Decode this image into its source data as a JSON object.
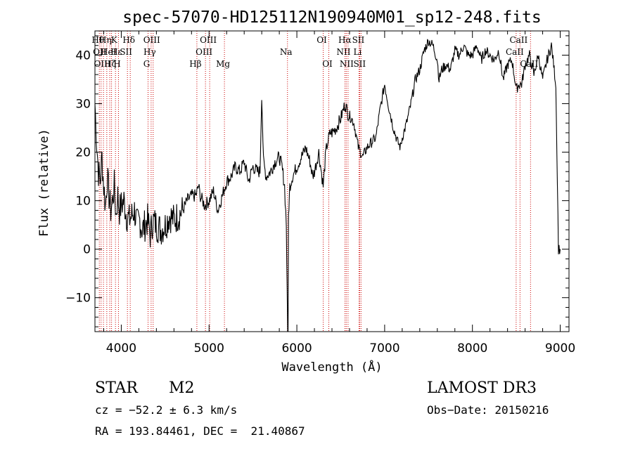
{
  "chart_data": {
    "type": "line",
    "title": "spec-57070-HD125112N190940M01_sp12-248.fits",
    "xlabel": "Wavelength (Å)",
    "ylabel": "Flux (relative)",
    "xlim": [
      3700,
      9100
    ],
    "ylim": [
      -17,
      45
    ],
    "xticks": [
      4000,
      5000,
      6000,
      7000,
      8000,
      9000
    ],
    "yticks": [
      -10,
      0,
      10,
      20,
      30,
      40
    ],
    "grid": false,
    "series": [
      {
        "x": [
          3700,
          3720,
          3740,
          3760,
          3780,
          3800,
          3820,
          3840,
          3860,
          3880,
          3900,
          3920,
          3940,
          3960,
          3980,
          4000,
          4030,
          4060,
          4090,
          4120,
          4150,
          4180,
          4210,
          4240,
          4270,
          4300,
          4330,
          4360,
          4400,
          4450,
          4500,
          4550,
          4600,
          4650,
          4700,
          4750,
          4800,
          4850,
          4880,
          4900,
          4950,
          5000,
          5050,
          5100,
          5150,
          5200,
          5250,
          5300,
          5350,
          5400,
          5450,
          5500,
          5550,
          5580,
          5600,
          5620,
          5650,
          5700,
          5750,
          5800,
          5830,
          5860,
          5880,
          5895,
          5900,
          5905,
          5920,
          5950,
          6000,
          6050,
          6080,
          6100,
          6150,
          6180,
          6200,
          6250,
          6300,
          6330,
          6350,
          6380,
          6400,
          6450,
          6500,
          6550,
          6580,
          6620,
          6650,
          6700,
          6750,
          6800,
          6850,
          6900,
          6950,
          7000,
          7050,
          7100,
          7150,
          7180,
          7200,
          7250,
          7300,
          7350,
          7400,
          7450,
          7500,
          7550,
          7600,
          7620,
          7650,
          7700,
          7750,
          7800,
          7850,
          7900,
          7950,
          8000,
          8050,
          8100,
          8150,
          8200,
          8250,
          8300,
          8350,
          8400,
          8450,
          8500,
          8530,
          8560,
          8600,
          8650,
          8700,
          8750,
          8800,
          8850,
          8900,
          8950,
          8980,
          9000
        ],
        "y": [
          30,
          22,
          16,
          14,
          19,
          13,
          9,
          15,
          11,
          8,
          10,
          13,
          7,
          11,
          8,
          9,
          10,
          7,
          6,
          7,
          8,
          5,
          6,
          4,
          5,
          6,
          3,
          6,
          5,
          4,
          5,
          7,
          6,
          7,
          8,
          10,
          11,
          11,
          13,
          11,
          9,
          10,
          12,
          8,
          11,
          14,
          15,
          17,
          16,
          18,
          14,
          17,
          16,
          16,
          32,
          18,
          15,
          16,
          18,
          19,
          17,
          13,
          5,
          -17,
          -17,
          7,
          13,
          15,
          17,
          19,
          20,
          21,
          18,
          15,
          16,
          20,
          13,
          20,
          22,
          24,
          24,
          25,
          27,
          30,
          28,
          27,
          26,
          21,
          19,
          21,
          22,
          23,
          29,
          34,
          29,
          25,
          22,
          21,
          23,
          26,
          30,
          35,
          37,
          41,
          43,
          42,
          39,
          35,
          37,
          38,
          37,
          41,
          40,
          42,
          40,
          40,
          42,
          39,
          41,
          40,
          39,
          41,
          35,
          38,
          39,
          33,
          34,
          34,
          38,
          40,
          36,
          40,
          35,
          39,
          42,
          34,
          0,
          0
        ]
      }
    ],
    "line_labels": [
      {
        "w": 3750,
        "row": 1,
        "text": "Hθ"
      },
      {
        "w": 3770,
        "row": 2,
        "text": "OII"
      },
      {
        "w": 3800,
        "row": 3,
        "text": "OIII"
      },
      {
        "w": 3835,
        "row": 1,
        "text": "Hη"
      },
      {
        "w": 3870,
        "row": 2,
        "text": "HeI"
      },
      {
        "w": 3890,
        "row": 3,
        "text": "Hζ"
      },
      {
        "w": 3934,
        "row": 1,
        "text": "K"
      },
      {
        "w": 3968,
        "row": 3,
        "text": "H"
      },
      {
        "w": 3960,
        "row": 2,
        "text": "Hε"
      },
      {
        "w": 4070,
        "row": 2,
        "text": "SII"
      },
      {
        "w": 4102,
        "row": 1,
        "text": "Hδ"
      },
      {
        "w": 4305,
        "row": 3,
        "text": "G"
      },
      {
        "w": 4340,
        "row": 2,
        "text": "Hγ"
      },
      {
        "w": 4363,
        "row": 1,
        "text": "OIII"
      },
      {
        "w": 4861,
        "row": 3,
        "text": "Hβ"
      },
      {
        "w": 4959,
        "row": 2,
        "text": "OIII"
      },
      {
        "w": 5007,
        "row": 1,
        "text": "OIII"
      },
      {
        "w": 5175,
        "row": 3,
        "text": "Mg"
      },
      {
        "w": 5893,
        "row": 2,
        "text": "Na"
      },
      {
        "w": 6300,
        "row": 1,
        "text": "OI"
      },
      {
        "w": 6364,
        "row": 3,
        "text": "OI"
      },
      {
        "w": 6548,
        "row": 2,
        "text": "NII"
      },
      {
        "w": 6563,
        "row": 1,
        "text": "Hα"
      },
      {
        "w": 6583,
        "row": 3,
        "text": "NII"
      },
      {
        "w": 6708,
        "row": 2,
        "text": "Li"
      },
      {
        "w": 6716,
        "row": 1,
        "text": "SII"
      },
      {
        "w": 6731,
        "row": 3,
        "text": "SII"
      },
      {
        "w": 8498,
        "row": 2,
        "text": "CaII"
      },
      {
        "w": 8542,
        "row": 1,
        "text": "CaII"
      },
      {
        "w": 8662,
        "row": 3,
        "text": "CaII"
      }
    ],
    "line_positions": [
      3750,
      3770,
      3797,
      3835,
      3869,
      3889,
      3934,
      3968,
      4070,
      4102,
      4305,
      4340,
      4363,
      4861,
      4959,
      5007,
      5175,
      5893,
      6300,
      6364,
      6548,
      6563,
      6583,
      6708,
      6716,
      6731,
      8498,
      8542,
      8662
    ],
    "line_color": "#cc0000"
  },
  "info": {
    "object_class": "STAR",
    "subclass": "M2",
    "survey": "LAMOST DR3",
    "cz": "cz = −52.2 ± 6.3 km/s",
    "obs_date": "Obs−Date: 20150216",
    "coords": "RA = 193.84461, DEC =  21.40867"
  }
}
